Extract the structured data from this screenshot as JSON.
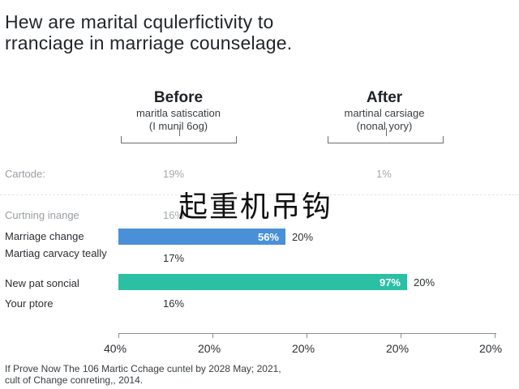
{
  "title_line1": "Hew are marital cqulerfictivity to",
  "title_line2": "rranciage in marriage counselage.",
  "columns": [
    {
      "heading": "Before",
      "sub1": "maritla satiscation",
      "sub2": "(I munil 6og)"
    },
    {
      "heading": "After",
      "sub1": "martinal carsiage",
      "sub2": "(nonal yory)"
    }
  ],
  "chart_data": {
    "type": "bar",
    "rows": [
      {
        "label": "Cartode:",
        "before_text": "19%",
        "after_text": "1%",
        "faded": true
      },
      {
        "label": "Curtning inange",
        "before_text": "16%",
        "faded": true
      },
      {
        "label": "Marriage change",
        "bar_value": 56,
        "bar_text": "56%",
        "side_text": "20%",
        "bar_color": "#4a90d9"
      },
      {
        "label": "Martiag carvacy teally",
        "before_text": "17%"
      },
      {
        "label": "New pat soncial",
        "bar_value": 97,
        "bar_text": "97%",
        "side_text": "20%",
        "bar_color": "#2bbfa4"
      },
      {
        "label": "Your ptore",
        "before_text": "16%"
      }
    ],
    "x_tick_labels": [
      "40%",
      "20%",
      "20%",
      "20%",
      "20%"
    ]
  },
  "watermark": "起重机吊钩",
  "footnote_line1": "If Prove Now The 106 Martic Cchage cuntel by 2028 May; 2021,",
  "footnote_line2": "cult of Change conreting,, 2014."
}
